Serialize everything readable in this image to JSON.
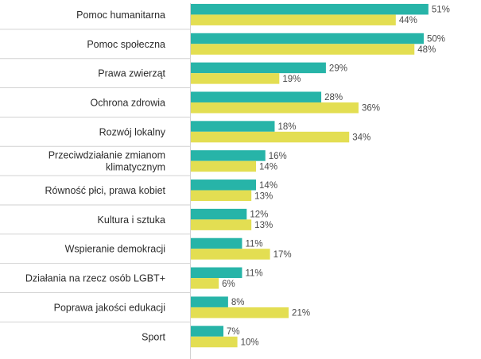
{
  "chart_data": {
    "type": "bar",
    "orientation": "horizontal",
    "title": "",
    "xlabel": "",
    "ylabel": "",
    "value_suffix": "%",
    "xlim": [
      0,
      64
    ],
    "legend": "none",
    "categories": [
      [
        "Pomoc humanitarna"
      ],
      [
        "Pomoc społeczna"
      ],
      [
        "Prawa zwierząt"
      ],
      [
        "Ochrona zdrowia"
      ],
      [
        "Rozwój lokalny"
      ],
      [
        "Przeciwdziałanie zmianom",
        "klimatycznym"
      ],
      [
        "Równość płci, prawa kobiet"
      ],
      [
        "Kultura i sztuka"
      ],
      [
        "Wspieranie demokracji"
      ],
      [
        "Działania na rzecz osób LGBT+"
      ],
      [
        "Poprawa jakości edukacji"
      ],
      [
        "Sport"
      ]
    ],
    "series": [
      {
        "name": "Series 1",
        "color": "#27b4a8",
        "values": [
          51,
          50,
          29,
          28,
          18,
          16,
          14,
          12,
          11,
          11,
          8,
          7
        ]
      },
      {
        "name": "Series 2",
        "color": "#e3de52",
        "values": [
          44,
          48,
          19,
          36,
          34,
          14,
          13,
          13,
          17,
          6,
          21,
          10
        ]
      }
    ],
    "colors": {
      "divider": "#d2d2d2"
    }
  }
}
